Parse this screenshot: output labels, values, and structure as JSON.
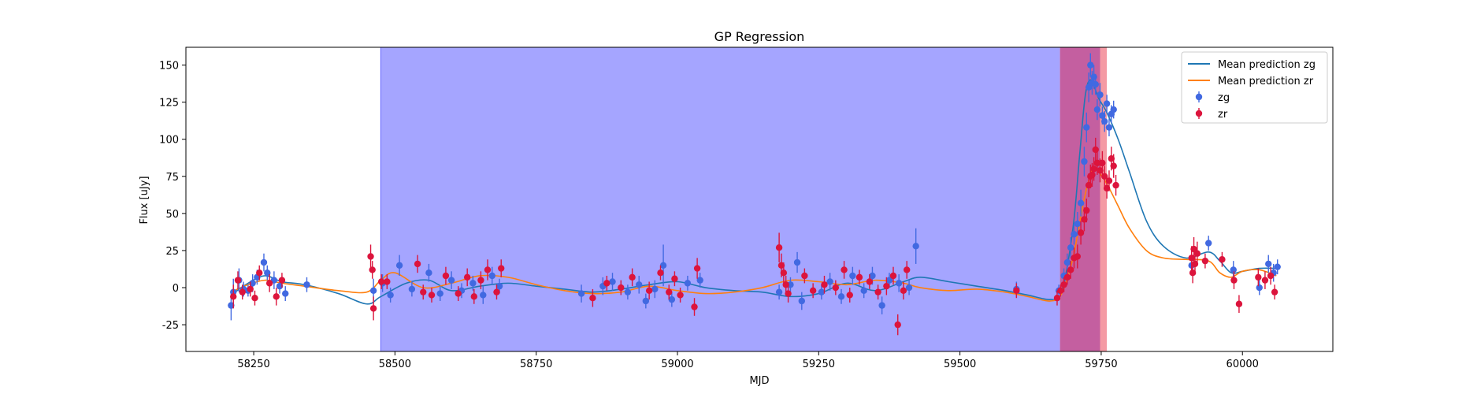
{
  "chart_data": {
    "type": "scatter",
    "title": "GP Regression",
    "xlabel": "MJD",
    "ylabel": "Flux [uJy]",
    "xlim": [
      58130,
      60160
    ],
    "ylim": [
      -43,
      162
    ],
    "xticks": [
      58250,
      58500,
      58750,
      59000,
      59250,
      59500,
      59750,
      60000
    ],
    "yticks": [
      -25,
      0,
      25,
      50,
      75,
      100,
      125,
      150
    ],
    "legend": {
      "position": "top-right",
      "entries": [
        "Mean prediction zg",
        "Mean prediction zr",
        "zg",
        "zr"
      ]
    },
    "shaded_regions": [
      {
        "name": "blue-window",
        "x0": 58475,
        "x1": 59678,
        "color": "#a5a5ff"
      },
      {
        "name": "red-window",
        "x0": 59678,
        "x1": 59760,
        "color": "#f49aa4"
      },
      {
        "name": "overlap-window",
        "x0": 59678,
        "x1": 59748,
        "color": "#c45fa0"
      }
    ],
    "series": [
      {
        "name": "Mean prediction zg",
        "kind": "line",
        "color": "#1f77b4",
        "x": [
          58210,
          58240,
          58270,
          58300,
          58340,
          58400,
          58450,
          58475,
          58520,
          58560,
          58600,
          58650,
          58700,
          58750,
          58800,
          58850,
          58900,
          58950,
          59000,
          59050,
          59100,
          59150,
          59200,
          59250,
          59300,
          59350,
          59400,
          59430,
          59480,
          59530,
          59580,
          59620,
          59660,
          59680,
          59700,
          59712,
          59722,
          59732,
          59745,
          59760,
          59780,
          59800,
          59830,
          59860,
          59900,
          59940,
          59960,
          59980,
          60000,
          60030,
          60060
        ],
        "y": [
          -5,
          3,
          8,
          4,
          2,
          -4,
          -11,
          -6,
          3,
          5,
          -2,
          1,
          3,
          1,
          -1,
          -3,
          -1,
          2,
          4,
          0,
          -2,
          -3,
          -6,
          -4,
          3,
          -2,
          4,
          7,
          4,
          1,
          -2,
          -5,
          -8,
          -3,
          40,
          90,
          130,
          140,
          128,
          118,
          100,
          78,
          45,
          28,
          20,
          24,
          18,
          10,
          11,
          13,
          13
        ]
      },
      {
        "name": "Mean prediction zr",
        "kind": "line",
        "color": "#ff7f0e",
        "x": [
          58210,
          58240,
          58270,
          58300,
          58340,
          58400,
          58450,
          58475,
          58500,
          58550,
          58600,
          58650,
          58700,
          58750,
          58800,
          58850,
          58900,
          58950,
          59000,
          59050,
          59100,
          59150,
          59200,
          59250,
          59300,
          59350,
          59400,
          59430,
          59480,
          59530,
          59580,
          59620,
          59660,
          59680,
          59700,
          59720,
          59735,
          59745,
          59760,
          59780,
          59800,
          59830,
          59860,
          59900,
          59940,
          59960,
          59980,
          60000,
          60030,
          60060
        ],
        "y": [
          -3,
          2,
          5,
          3,
          1,
          -2,
          -3,
          5,
          10,
          0,
          3,
          8,
          7,
          2,
          -2,
          -4,
          -3,
          1,
          -2,
          -4,
          -3,
          0,
          5,
          4,
          2,
          5,
          3,
          0,
          -2,
          -1,
          -3,
          -6,
          -9,
          -4,
          20,
          60,
          80,
          78,
          70,
          55,
          40,
          25,
          20,
          19,
          18,
          10,
          7,
          11,
          12,
          8
        ]
      },
      {
        "name": "zg",
        "kind": "errorbar",
        "color": "#4169e1",
        "points": [
          [
            58210,
            -12,
            10
          ],
          [
            58214,
            -3,
            9
          ],
          [
            58224,
            5,
            8
          ],
          [
            58232,
            -1,
            5
          ],
          [
            58240,
            -2,
            4
          ],
          [
            58248,
            3,
            6
          ],
          [
            58256,
            7,
            5
          ],
          [
            58268,
            17,
            6
          ],
          [
            58274,
            10,
            5
          ],
          [
            58286,
            5,
            6
          ],
          [
            58296,
            1,
            5
          ],
          [
            58306,
            -4,
            5
          ],
          [
            58344,
            2,
            5
          ],
          [
            58462,
            -2,
            8
          ],
          [
            58478,
            3,
            6
          ],
          [
            58492,
            -5,
            5
          ],
          [
            58508,
            15,
            7
          ],
          [
            58530,
            -1,
            5
          ],
          [
            58560,
            10,
            6
          ],
          [
            58580,
            -4,
            5
          ],
          [
            58600,
            5,
            6
          ],
          [
            58618,
            -2,
            5
          ],
          [
            58638,
            3,
            5
          ],
          [
            58656,
            -5,
            6
          ],
          [
            58672,
            8,
            6
          ],
          [
            58685,
            1,
            5
          ],
          [
            58830,
            -4,
            6
          ],
          [
            58868,
            1,
            6
          ],
          [
            58885,
            4,
            6
          ],
          [
            58912,
            -3,
            5
          ],
          [
            58932,
            2,
            6
          ],
          [
            58944,
            -9,
            5
          ],
          [
            58960,
            -1,
            6
          ],
          [
            58975,
            15,
            14
          ],
          [
            58990,
            -8,
            5
          ],
          [
            59018,
            3,
            5
          ],
          [
            59040,
            5,
            5
          ],
          [
            59180,
            -3,
            5
          ],
          [
            59200,
            2,
            5
          ],
          [
            59212,
            17,
            7
          ],
          [
            59220,
            -9,
            6
          ],
          [
            59255,
            -3,
            5
          ],
          [
            59270,
            4,
            6
          ],
          [
            59290,
            -6,
            5
          ],
          [
            59310,
            8,
            6
          ],
          [
            59330,
            -2,
            5
          ],
          [
            59345,
            8,
            6
          ],
          [
            59362,
            -12,
            6
          ],
          [
            59375,
            5,
            5
          ],
          [
            59392,
            3,
            6
          ],
          [
            59410,
            0,
            5
          ],
          [
            59422,
            28,
            12
          ],
          [
            59600,
            -1,
            5
          ],
          [
            59675,
            -2,
            4
          ],
          [
            59684,
            8,
            5
          ],
          [
            59690,
            17,
            6
          ],
          [
            59696,
            27,
            7
          ],
          [
            59702,
            36,
            7
          ],
          [
            59708,
            43,
            8
          ],
          [
            59714,
            57,
            9
          ],
          [
            59720,
            85,
            10
          ],
          [
            59724,
            108,
            10
          ],
          [
            59728,
            135,
            10
          ],
          [
            59731,
            150,
            8
          ],
          [
            59734,
            138,
            8
          ],
          [
            59737,
            142,
            8
          ],
          [
            59740,
            137,
            7
          ],
          [
            59743,
            120,
            7
          ],
          [
            59748,
            130,
            8
          ],
          [
            59752,
            116,
            6
          ],
          [
            59756,
            112,
            7
          ],
          [
            59760,
            124,
            6
          ],
          [
            59764,
            108,
            6
          ],
          [
            59768,
            117,
            6
          ],
          [
            59772,
            120,
            6
          ],
          [
            59910,
            15,
            7
          ],
          [
            59940,
            30,
            5
          ],
          [
            59984,
            12,
            6
          ],
          [
            60030,
            0,
            5
          ],
          [
            60046,
            16,
            6
          ],
          [
            60055,
            10,
            6
          ],
          [
            60062,
            14,
            5
          ]
        ]
      },
      {
        "name": "zr",
        "kind": "errorbar",
        "color": "#dc143c",
        "points": [
          [
            58214,
            -6,
            8
          ],
          [
            58222,
            5,
            6
          ],
          [
            58230,
            -3,
            5
          ],
          [
            58244,
            -1,
            5
          ],
          [
            58252,
            -7,
            5
          ],
          [
            58260,
            10,
            5
          ],
          [
            58278,
            3,
            6
          ],
          [
            58290,
            -6,
            6
          ],
          [
            58300,
            5,
            5
          ],
          [
            58457,
            21,
            8
          ],
          [
            58460,
            12,
            6
          ],
          [
            58462,
            -14,
            8
          ],
          [
            58476,
            4,
            5
          ],
          [
            58486,
            4,
            5
          ],
          [
            58540,
            16,
            6
          ],
          [
            58550,
            -3,
            5
          ],
          [
            58565,
            -5,
            5
          ],
          [
            58590,
            8,
            6
          ],
          [
            58612,
            -4,
            5
          ],
          [
            58628,
            7,
            6
          ],
          [
            58640,
            -6,
            5
          ],
          [
            58652,
            5,
            6
          ],
          [
            58664,
            12,
            7
          ],
          [
            58680,
            -3,
            5
          ],
          [
            58688,
            13,
            6
          ],
          [
            58850,
            -7,
            6
          ],
          [
            58875,
            3,
            5
          ],
          [
            58900,
            0,
            5
          ],
          [
            58920,
            7,
            6
          ],
          [
            58950,
            -2,
            6
          ],
          [
            58970,
            10,
            5
          ],
          [
            58985,
            -3,
            5
          ],
          [
            58995,
            6,
            5
          ],
          [
            59005,
            -5,
            5
          ],
          [
            59035,
            13,
            7
          ],
          [
            59030,
            -13,
            6
          ],
          [
            59180,
            27,
            10
          ],
          [
            59184,
            15,
            8
          ],
          [
            59188,
            10,
            7
          ],
          [
            59192,
            2,
            6
          ],
          [
            59196,
            -4,
            6
          ],
          [
            59225,
            8,
            5
          ],
          [
            59240,
            -2,
            5
          ],
          [
            59260,
            2,
            6
          ],
          [
            59280,
            0,
            5
          ],
          [
            59295,
            12,
            6
          ],
          [
            59305,
            -5,
            5
          ],
          [
            59322,
            7,
            5
          ],
          [
            59340,
            4,
            5
          ],
          [
            59355,
            -3,
            5
          ],
          [
            59370,
            1,
            6
          ],
          [
            59382,
            8,
            6
          ],
          [
            59390,
            -25,
            7
          ],
          [
            59400,
            -2,
            6
          ],
          [
            59406,
            12,
            6
          ],
          [
            59600,
            -2,
            5
          ],
          [
            59672,
            -7,
            5
          ],
          [
            59678,
            -2,
            4
          ],
          [
            59684,
            2,
            5
          ],
          [
            59690,
            7,
            5
          ],
          [
            59696,
            12,
            6
          ],
          [
            59702,
            20,
            7
          ],
          [
            59708,
            21,
            8
          ],
          [
            59714,
            37,
            8
          ],
          [
            59720,
            46,
            8
          ],
          [
            59724,
            52,
            8
          ],
          [
            59728,
            69,
            8
          ],
          [
            59731,
            75,
            8
          ],
          [
            59734,
            76,
            8
          ],
          [
            59737,
            80,
            8
          ],
          [
            59740,
            93,
            8
          ],
          [
            59743,
            84,
            8
          ],
          [
            59748,
            79,
            8
          ],
          [
            59752,
            84,
            8
          ],
          [
            59756,
            75,
            7
          ],
          [
            59760,
            67,
            7
          ],
          [
            59764,
            72,
            7
          ],
          [
            59768,
            87,
            8
          ],
          [
            59772,
            82,
            8
          ],
          [
            59776,
            69,
            7
          ],
          [
            59910,
            20,
            8
          ],
          [
            59912,
            10,
            7
          ],
          [
            59914,
            26,
            8
          ],
          [
            59916,
            16,
            6
          ],
          [
            59920,
            23,
            8
          ],
          [
            59934,
            18,
            5
          ],
          [
            59964,
            19,
            5
          ],
          [
            59985,
            5,
            6
          ],
          [
            59994,
            -11,
            6
          ],
          [
            60028,
            7,
            6
          ],
          [
            60040,
            5,
            6
          ],
          [
            60050,
            8,
            6
          ],
          [
            60057,
            -3,
            5
          ]
        ]
      }
    ]
  }
}
